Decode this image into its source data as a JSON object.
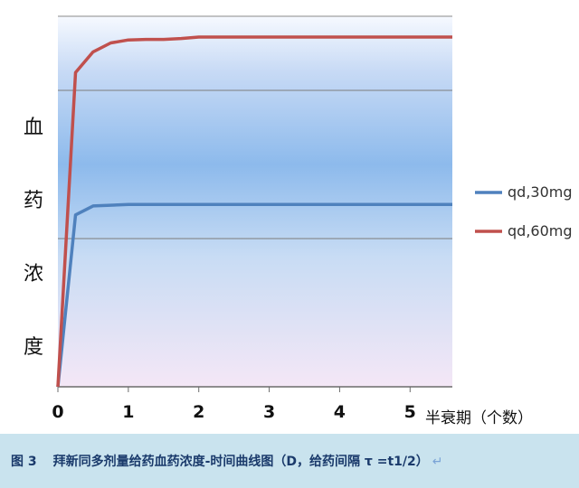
{
  "chart_data": {
    "type": "line",
    "ylabel": "血药浓度",
    "xlabel": "半衰期（个数）",
    "x_ticks": [
      "0",
      "1",
      "2",
      "3",
      "4",
      "5"
    ],
    "xlim": [
      0,
      5.6
    ],
    "ylim": [
      0,
      1.25
    ],
    "grid": {
      "horizontal_lines": [
        0.5,
        1.0
      ]
    },
    "legend_position": "right",
    "series": [
      {
        "name": "qd,30mg",
        "color": "#4f81bd",
        "x": [
          0,
          0.25,
          0.5,
          1.0,
          1.5,
          2.0,
          3.0,
          4.0,
          5.0,
          5.6
        ],
        "y": [
          0,
          0.58,
          0.61,
          0.615,
          0.615,
          0.615,
          0.615,
          0.615,
          0.615,
          0.615
        ]
      },
      {
        "name": "qd,60mg",
        "color": "#c0504d",
        "x": [
          0,
          0.25,
          0.5,
          0.75,
          1.0,
          1.25,
          1.5,
          1.75,
          2.0,
          3.0,
          4.0,
          5.0,
          5.6
        ],
        "y": [
          0,
          1.06,
          1.13,
          1.16,
          1.17,
          1.172,
          1.172,
          1.175,
          1.18,
          1.18,
          1.18,
          1.18,
          1.18
        ]
      }
    ]
  },
  "caption": {
    "figure_number": "图 3",
    "text": "拜新同多剂量给药血药浓度-时间曲线图（D，给药间隔 τ =t1/2）",
    "enter_mark": "↵"
  }
}
